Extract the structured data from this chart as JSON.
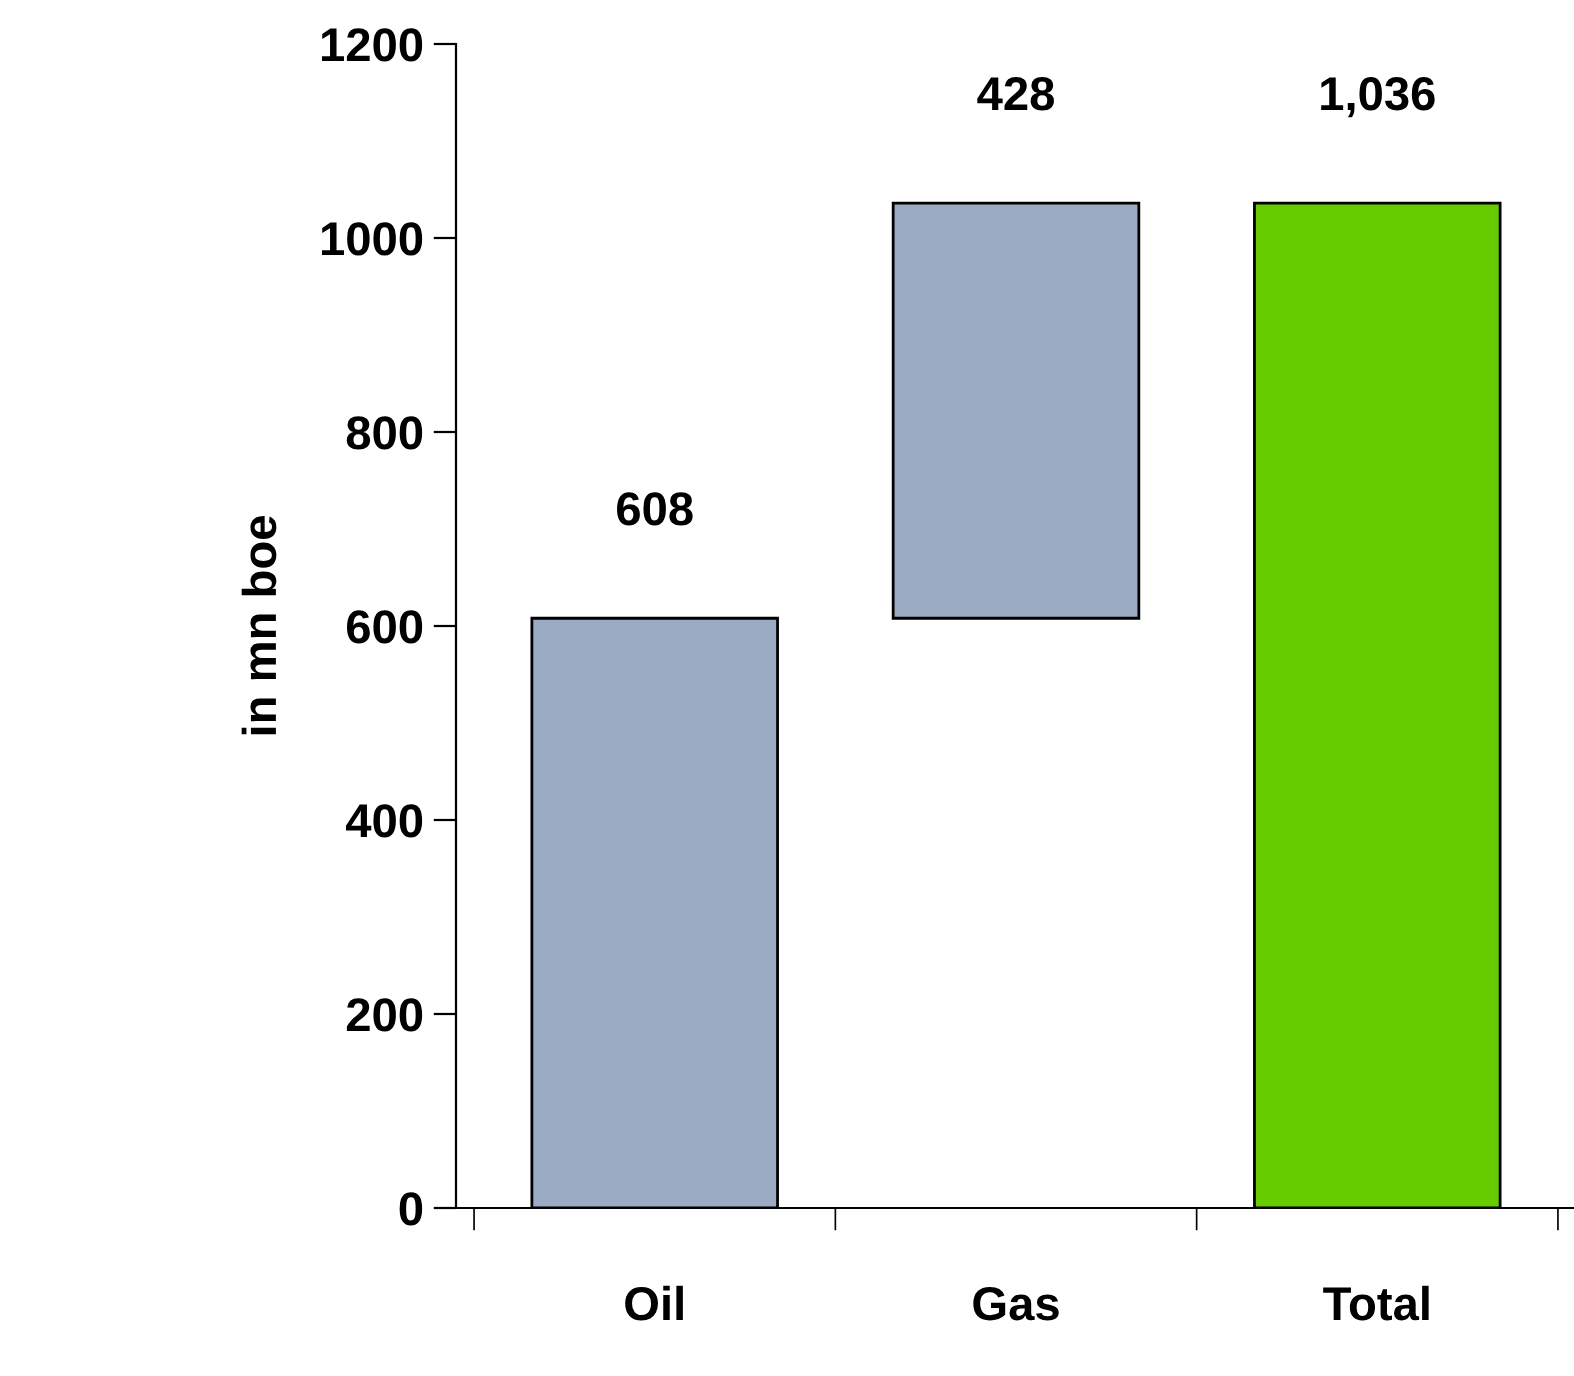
{
  "chart_data": {
    "type": "bar",
    "ylabel": "in mn boe",
    "categories": [
      "Oil",
      "Gas",
      "Total"
    ],
    "values": [
      608,
      428,
      1036
    ],
    "base": [
      0,
      608,
      0
    ],
    "colors": [
      "#9aabc3",
      "#9aabc3",
      "#66cc00"
    ],
    "value_labels": [
      "608",
      "428",
      "1,036"
    ],
    "ylim": [
      0,
      1200
    ],
    "yticks": [
      0,
      200,
      400,
      600,
      800,
      1000,
      1200
    ],
    "grid": false,
    "legend": false
  }
}
